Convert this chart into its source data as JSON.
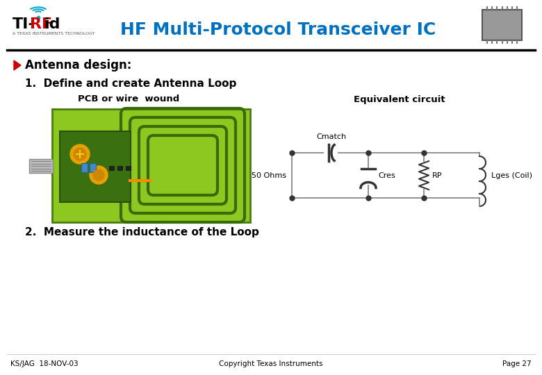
{
  "title": "HF Multi-Protocol Transceiver IC",
  "title_color": "#0070C0",
  "bg_color": "#FFFFFF",
  "bullet_text": "Antenna design:",
  "item1": "1.  Define and create Antenna Loop",
  "item2": "2.  Measure the inductance of the Loop",
  "pcb_label": "PCB or wire  wound",
  "equiv_label": "Equivalent circuit",
  "footer_left": "KS/JAG  18-NOV-03",
  "footer_center": "Copyright Texas Instruments",
  "footer_right": "Page 27",
  "pcb_bg_color": "#8CC820",
  "pcb_dark_green": "#4A7A10",
  "antenna_track_color": "#3A6A08",
  "sub_board_color": "#3A7010",
  "circuit_line_color": "#888888"
}
